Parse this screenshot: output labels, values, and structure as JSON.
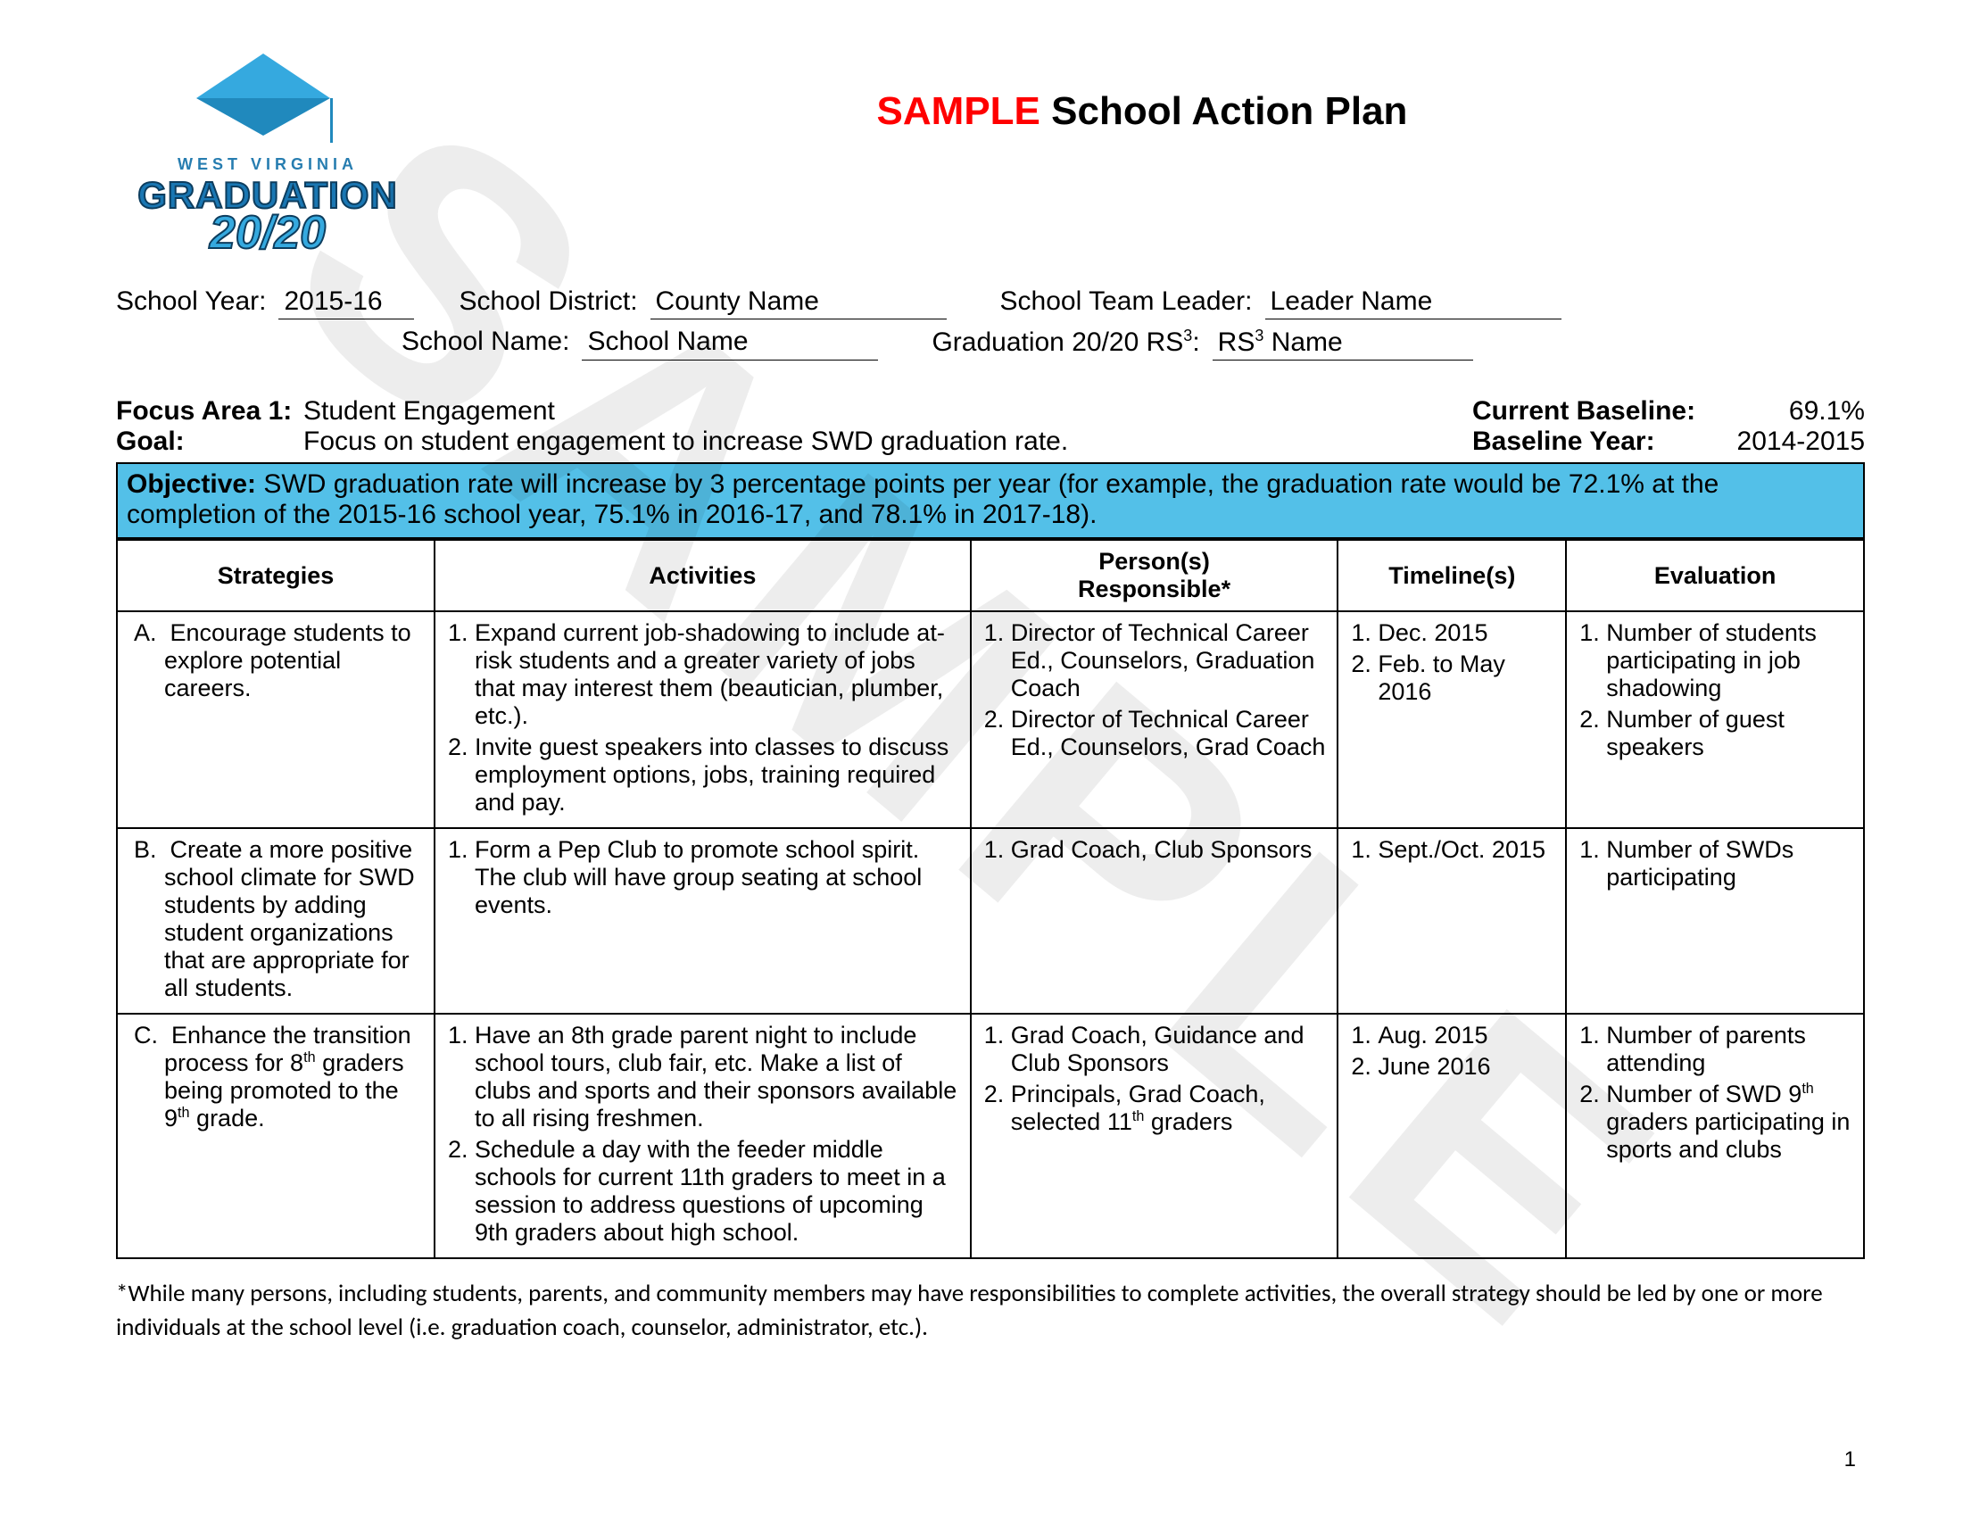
{
  "title": {
    "sample": "SAMPLE",
    "rest": "School Action Plan"
  },
  "logo": {
    "wv": "WEST VIRGINIA",
    "grad": "GRADUATION",
    "year": "20/20"
  },
  "watermark": "SAMPLE",
  "header": {
    "year_label": "School Year:",
    "year": "2015-16",
    "district_label": "School District:",
    "district": "County Name",
    "school_label": "School Name:",
    "school": "School Name",
    "leader_label": "School Team Leader:",
    "leader": "Leader Name",
    "rs_label_pre": "Graduation 20/20 RS",
    "rs_label_sup": "3",
    "rs_label_post": ":",
    "rs_value_pre": "RS",
    "rs_value_sup": "3",
    "rs_value_post": " Name"
  },
  "focus": {
    "fa_label": "Focus Area 1:",
    "fa_value": "Student Engagement",
    "goal_label": "Goal:",
    "goal_value": "Focus on student engagement to increase SWD graduation rate.",
    "cb_label": "Current Baseline:",
    "cb_value": "69.1%",
    "by_label": "Baseline Year:",
    "by_value": "2014-2015"
  },
  "objective": {
    "label": "Objective:",
    "main": "SWD graduation rate will increase by 3 percentage points per year",
    "paren": "(for example, the graduation rate would be 72.1% at the completion of the 2015-16 school year, 75.1% in 2016-17, and 78.1% in 2017-18)."
  },
  "columns": {
    "c1": "Strategies",
    "c2": "Activities",
    "c3_line1": "Person(s)",
    "c3_line2": "Responsible*",
    "c4": "Timeline(s)",
    "c5": "Evaluation"
  },
  "rows": [
    {
      "strategy": "Encourage students to explore potential careers.",
      "activities": [
        "Expand current job-shadowing to include at-risk students and a greater variety of jobs that may interest them (beautician, plumber, etc.).",
        "Invite guest speakers into classes to discuss employment options, jobs, training required and pay."
      ],
      "persons": [
        "Director of Technical Career Ed., Counselors, Graduation Coach",
        "Director of Technical Career Ed., Counselors, Grad Coach"
      ],
      "timelines": [
        "Dec. 2015",
        "Feb. to May 2016"
      ],
      "evaluation": [
        "Number of students participating in job shadowing",
        "Number of guest speakers"
      ]
    },
    {
      "strategy": "Create a more positive school climate for SWD students by adding student organizations that are appropriate for all students.",
      "activities": [
        "Form a Pep Club to promote school spirit. The club will have group seating at school events."
      ],
      "persons": [
        "Grad Coach, Club Sponsors"
      ],
      "timelines": [
        "Sept./Oct. 2015"
      ],
      "evaluation": [
        "Number of SWDs participating"
      ]
    },
    {
      "strategy_html": "Enhance the transition process for 8<sup>th</sup> graders being promoted to the 9<sup>th</sup> grade.",
      "activities": [
        "Have an 8th grade parent night to include school tours, club fair, etc. Make a list of clubs and sports and their sponsors available to all rising freshmen.",
        "Schedule a day with the feeder middle schools for current 11th graders to meet in a session to address questions of upcoming 9th graders about high school."
      ],
      "persons_html": [
        "Grad Coach, Guidance and Club Sponsors",
        "Principals, Grad Coach, selected 11<sup>th</sup> graders"
      ],
      "timelines": [
        "Aug. 2015",
        "June 2016"
      ],
      "evaluation_html": [
        "Number of parents attending",
        "Number of SWD 9<sup>th</sup> graders participating in sports and clubs"
      ]
    }
  ],
  "footnote": "*While many persons, including students, parents, and community members may have responsibilities to complete activities, the overall strategy should be led by one or more individuals at the school level (i.e. graduation coach, counselor, administrator, etc.).",
  "page_number": "1"
}
